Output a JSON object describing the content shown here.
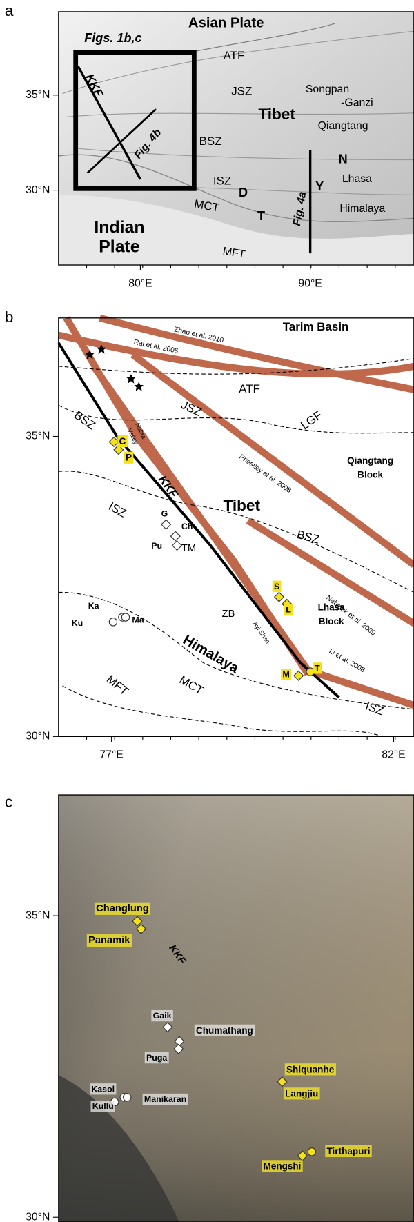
{
  "panels": [
    {
      "label": "a",
      "lat_ticks": [
        "35°N",
        "30°N"
      ],
      "lon_ticks": [
        "80°E",
        "90°E"
      ],
      "labels": [
        "Asian Plate",
        "Figs. 1b,c",
        "ATF",
        "JSZ",
        "Songpan",
        "-Ganzi",
        "Tibet",
        "KKF",
        "Qiangtang",
        "BSZ",
        "Fig. 4b",
        "ISZ",
        "D",
        "N",
        "Y",
        "Lhasa",
        "MCT",
        "T",
        "Fig. 4a",
        "Himalaya",
        "Indian",
        "Plate",
        "MFT"
      ]
    },
    {
      "label": "b",
      "lat_ticks": [
        "35°N",
        "30°N"
      ],
      "lon_ticks": [
        "77°E",
        "82°E"
      ],
      "labels": [
        "Tarim Basin",
        "Zhao et al. 2010",
        "Rai et al. 2006",
        "ATF",
        "BSZ",
        "JSZ",
        "LGF",
        "Nubra",
        "Valley",
        "Qiangtang",
        "Block",
        "C",
        "P",
        "Priestley et al. 2008",
        "KKF",
        "Tibet",
        "ISZ",
        "G",
        "Ch",
        "Pu",
        "TM",
        "BSZ",
        "Nabelek et al. 2009",
        "S",
        "L",
        "Lhasa",
        "Block",
        "Ka",
        "Ku",
        "Ma",
        "ZB",
        "Ayi Shan",
        "Himalaya",
        "Li et al. 2008",
        "M",
        "T",
        "MFT",
        "MCT",
        "ISZ"
      ]
    },
    {
      "label": "c",
      "lat_ticks": [
        "35°N",
        "30°N"
      ],
      "labels": [
        "Changlung",
        "Panamik",
        "KKF",
        "Gaik",
        "Chumathang",
        "Puga",
        "Shiquanhe",
        "Langjiu",
        "Kasol",
        "Kullu",
        "Manikaran",
        "Tirthapuri",
        "Mengshi"
      ]
    }
  ]
}
